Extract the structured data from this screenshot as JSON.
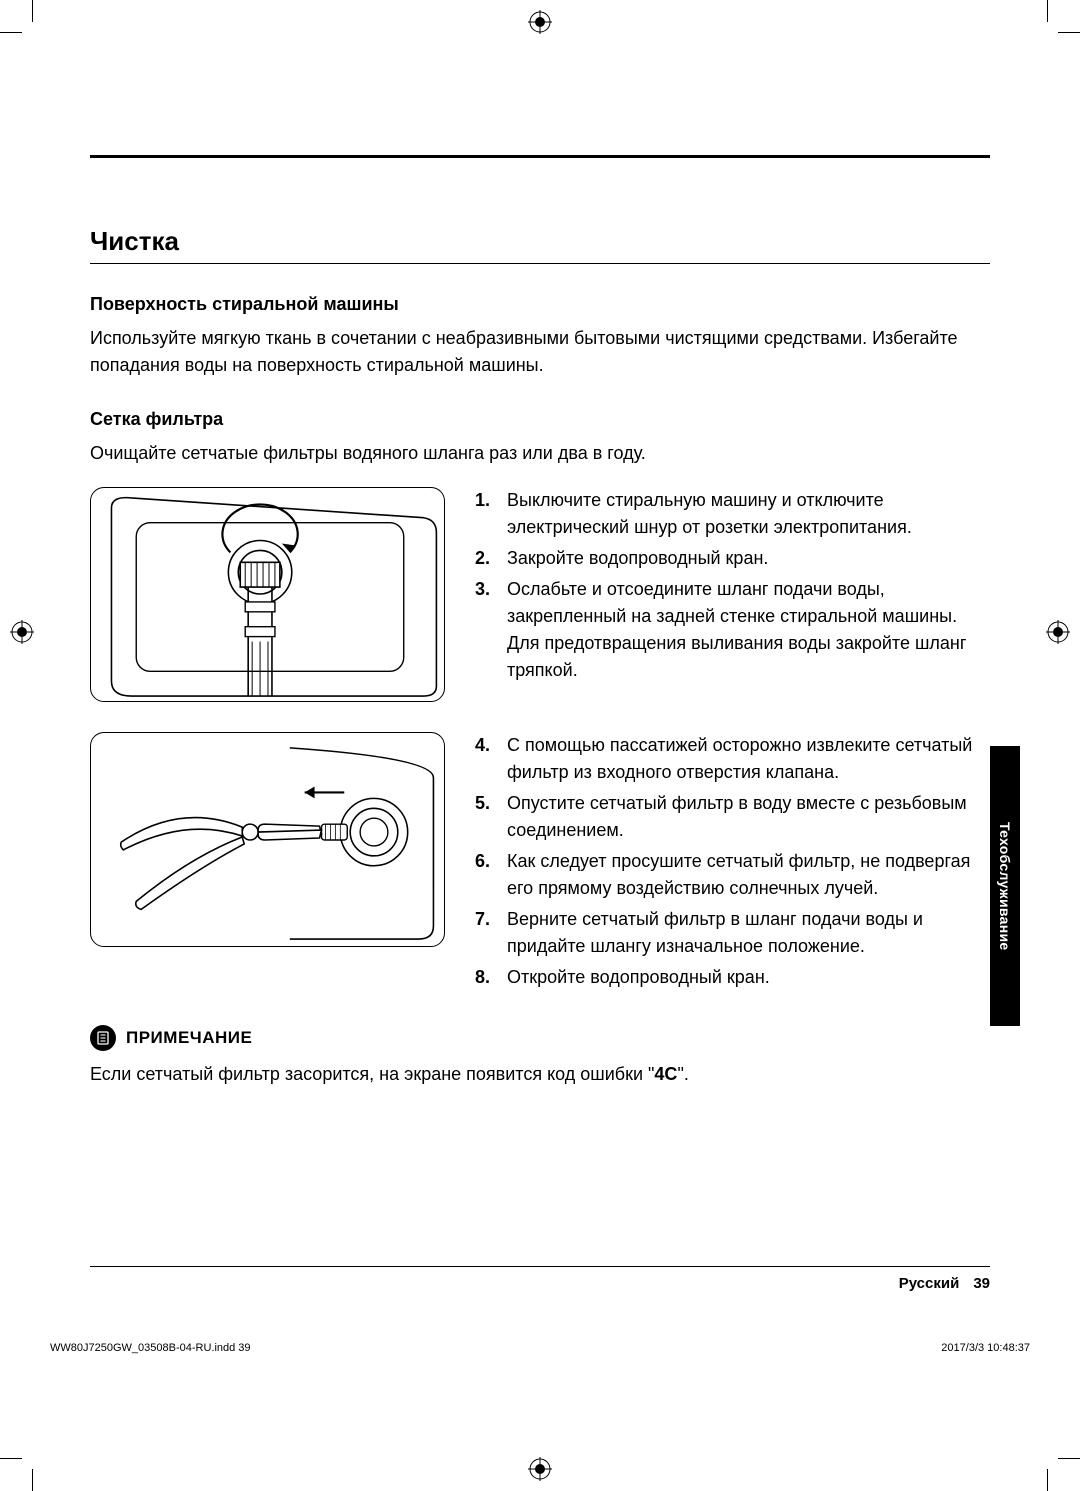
{
  "sectionTitle": "Чистка",
  "surface": {
    "heading": "Поверхность стиральной машины",
    "body": "Используйте мягкую ткань в сочетании с неабразивными бытовыми чистящими средствами. Избегайте попадания воды на поверхность стиральной машины."
  },
  "mesh": {
    "heading": "Сетка фильтра",
    "body": "Очищайте сетчатые фильтры водяного шланга раз или два в году."
  },
  "steps1": [
    {
      "n": "1.",
      "t": "Выключите стиральную машину и отключите электрический шнур от розетки электропитания."
    },
    {
      "n": "2.",
      "t": "Закройте водопроводный кран."
    },
    {
      "n": "3.",
      "t": "Ослабьте и отсоедините шланг подачи воды, закрепленный на задней стенке стиральной машины. Для предотвращения выливания воды закройте шланг тряпкой."
    }
  ],
  "steps2": [
    {
      "n": "4.",
      "t": "С помощью пассатижей осторожно извлеките сетчатый фильтр из входного отверстия клапана."
    },
    {
      "n": "5.",
      "t": "Опустите сетчатый фильтр в воду вместе с резьбовым соединением."
    },
    {
      "n": "6.",
      "t": "Как следует просушите сетчатый фильтр, не подвергая его прямому воздействию солнечных лучей."
    },
    {
      "n": "7.",
      "t": "Верните сетчатый фильтр в шланг подачи воды и придайте шлангу изначальное положение."
    },
    {
      "n": "8.",
      "t": "Откройте водопроводный кран."
    }
  ],
  "note": {
    "label": "ПРИМЕЧАНИЕ",
    "prefix": "Если сетчатый фильтр засорится, на экране появится код ошибки \"",
    "code": "4C",
    "suffix": "\"."
  },
  "sideTab": "Техобслуживание",
  "footer": {
    "lang": "Русский",
    "page": "39"
  },
  "slug": {
    "left": "WW80J7250GW_03508B-04-RU.indd   39",
    "right": "2017/3/3   10:48:37"
  },
  "colors": {
    "ink": "#000000",
    "paper": "#ffffff"
  }
}
